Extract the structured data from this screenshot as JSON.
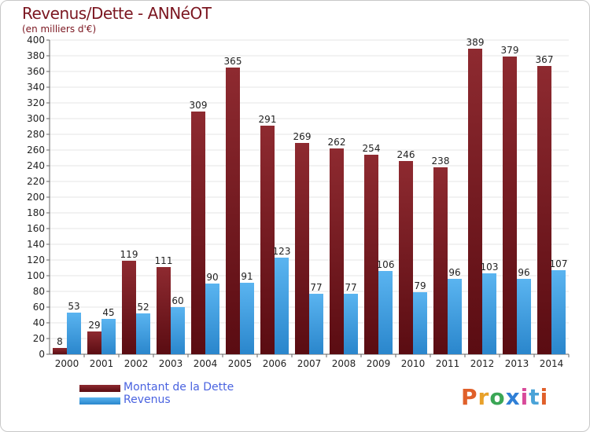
{
  "header": {
    "title": "Revenus/Dette - ANNéOT",
    "subtitle": "(en milliers d'€)"
  },
  "colors": {
    "dette": "#7a1a1f",
    "revenus": "#3b9fe6",
    "axis_text": "#222222",
    "grid": "#e4e4e4",
    "title": "#7b1620",
    "legend_text": "#4a63e0"
  },
  "chart_data": {
    "type": "bar",
    "title": "Revenus/Dette - ANNéOT",
    "subtitle": "(en milliers d'€)",
    "xlabel": "",
    "ylabel": "",
    "ylim": [
      0,
      400
    ],
    "y_ticks": [
      0,
      20,
      40,
      60,
      80,
      100,
      120,
      140,
      160,
      180,
      200,
      220,
      240,
      260,
      280,
      300,
      320,
      340,
      360,
      380,
      400
    ],
    "grid": true,
    "legend_position": "bottom-left",
    "categories": [
      "2000",
      "2001",
      "2002",
      "2003",
      "2004",
      "2005",
      "2006",
      "2007",
      "2008",
      "2009",
      "2010",
      "2011",
      "2012",
      "2013",
      "2014"
    ],
    "series": [
      {
        "name": "Montant de la Dette",
        "color": "#7a1a1f",
        "values": [
          8,
          29,
          119,
          111,
          309,
          365,
          291,
          269,
          262,
          254,
          246,
          238,
          389,
          379,
          367
        ]
      },
      {
        "name": "Revenus",
        "color": "#3b9fe6",
        "values": [
          53,
          45,
          52,
          60,
          90,
          91,
          123,
          77,
          77,
          106,
          79,
          96,
          103,
          96,
          107
        ]
      }
    ]
  },
  "legend": {
    "items": [
      {
        "label": "Montant de la Dette",
        "color": "#7a1a1f"
      },
      {
        "label": "Revenus",
        "color": "#3b9fe6"
      }
    ]
  },
  "logo": {
    "text": "Proxiti",
    "colors": [
      "#e0602a",
      "#e8a12a",
      "#3aa655",
      "#2f7fd6",
      "#d84a9a",
      "#4aa3d8",
      "#e0602a"
    ]
  }
}
